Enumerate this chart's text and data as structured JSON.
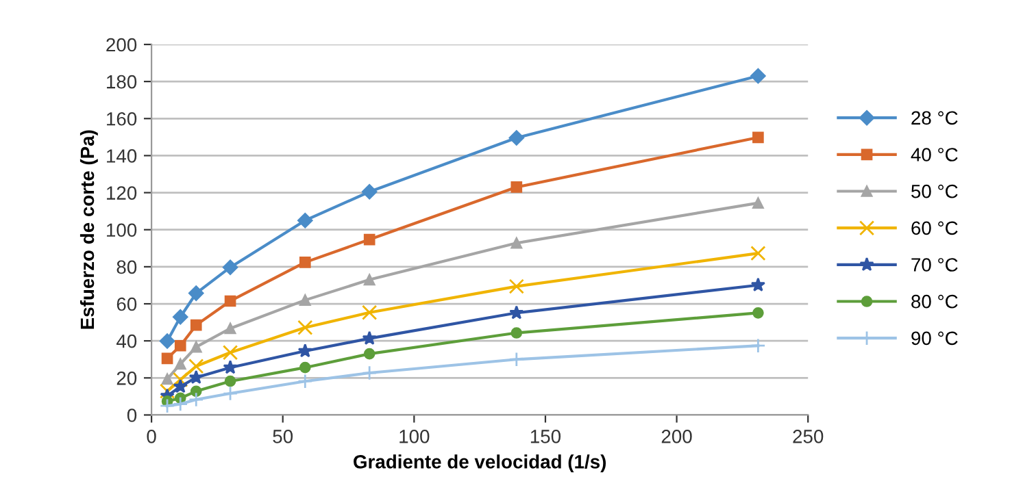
{
  "chart_data": {
    "type": "line",
    "xlabel": "Gradiente de velocidad (1/s)",
    "ylabel": "Esfuerzo de corte (Pa)",
    "x": [
      6,
      11,
      17,
      30,
      58.5,
      83,
      139,
      231
    ],
    "series": [
      {
        "name": "28 °C",
        "color": "#4a8cc8",
        "marker": "diamond",
        "values": [
          39.9,
          52.9,
          65.7,
          79.7,
          105,
          120.5,
          149.6,
          183
        ]
      },
      {
        "name": "40 °C",
        "color": "#d9682c",
        "marker": "square",
        "values": [
          30.5,
          37.4,
          48.5,
          61.5,
          82.4,
          94.7,
          123,
          149.8
        ]
      },
      {
        "name": "50 °C",
        "color": "#a5a5a5",
        "marker": "triangle",
        "values": [
          19.4,
          27.5,
          36.7,
          46.7,
          62,
          73,
          92.8,
          114.4
        ]
      },
      {
        "name": "60 °C",
        "color": "#f0b400",
        "marker": "cross",
        "values": [
          12.8,
          19,
          26.3,
          33.7,
          47.2,
          55.3,
          69.4,
          87.3
        ]
      },
      {
        "name": "70 °C",
        "color": "#2f55a4",
        "marker": "star",
        "values": [
          10.3,
          15.3,
          20.2,
          25.6,
          34.5,
          41.3,
          55.1,
          70.1
        ]
      },
      {
        "name": "80 °C",
        "color": "#5d9e3a",
        "marker": "circle",
        "values": [
          7.4,
          9.1,
          12.8,
          18.2,
          25.6,
          33,
          44.3,
          55.1
        ]
      },
      {
        "name": "90 °C",
        "color": "#9dc3e6",
        "marker": "plus",
        "values": [
          4.9,
          5.9,
          8.3,
          11.6,
          18.2,
          22.7,
          30,
          37.4
        ]
      }
    ],
    "xlim": [
      0,
      250
    ],
    "xticks": [
      0,
      50,
      100,
      150,
      200,
      250
    ],
    "ylim": [
      0,
      200
    ],
    "yticks": [
      0,
      20,
      40,
      60,
      80,
      100,
      120,
      140,
      160,
      180,
      200
    ],
    "grid": "y",
    "legend": "right",
    "line_style": "solid"
  }
}
